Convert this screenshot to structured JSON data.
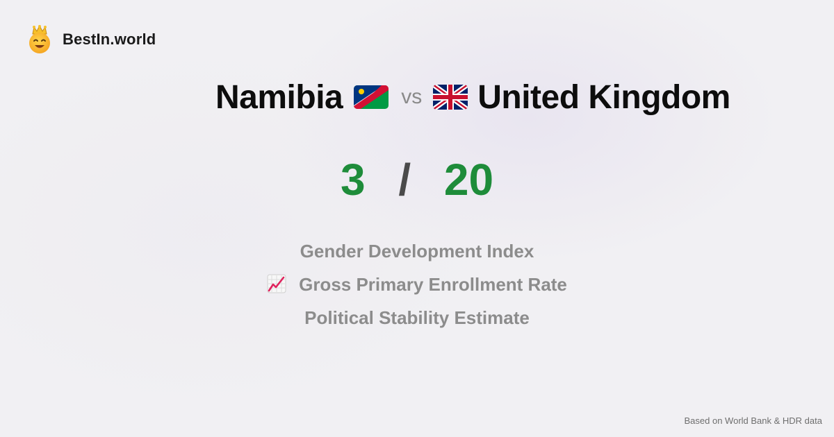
{
  "brand": {
    "name": "BestIn.world",
    "logo_icon": "crown-smiley-icon"
  },
  "comparison": {
    "country_a": {
      "name": "Namibia",
      "flag": "namibia-flag-icon"
    },
    "vs_label": "vs",
    "country_b": {
      "name": "United Kingdom",
      "flag": "uk-flag-icon"
    }
  },
  "score": {
    "country_a_wins": "3",
    "separator": "/",
    "country_b_wins": "20",
    "color": "#1e8c3a"
  },
  "metrics": [
    {
      "label": "Gender Development Index",
      "icon": null
    },
    {
      "label": "Gross Primary Enrollment Rate",
      "icon": "chart-increasing-icon"
    },
    {
      "label": "Political Stability Estimate",
      "icon": null
    }
  ],
  "footer": {
    "source": "Based on World Bank & HDR data"
  }
}
